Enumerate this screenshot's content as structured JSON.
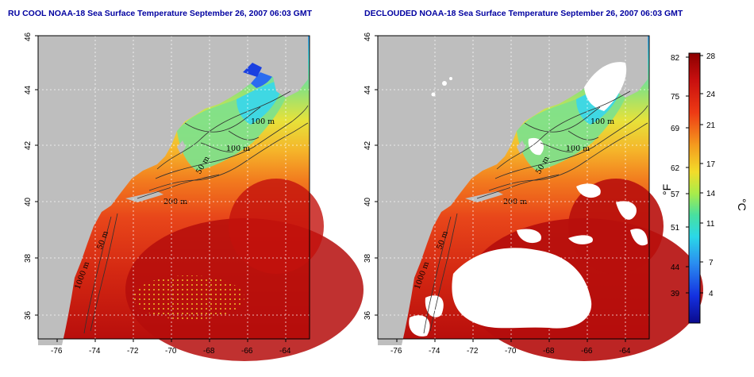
{
  "panels": [
    {
      "title": "RU COOL NOAA-18 Sea Surface Temperature September 26, 2007 06:03 GMT",
      "contour_labels": [
        "100 m",
        "100 m",
        "50 m",
        "200 m",
        "50 m",
        "1000 m"
      ]
    },
    {
      "title": "DECLOUDED NOAA-18 Sea Surface Temperature September 26, 2007 06:03 GMT",
      "contour_labels": [
        "100 m",
        "100 m",
        "50 m",
        "200 m",
        "50 m",
        "1000 m"
      ]
    }
  ],
  "axes": {
    "lon_ticks": [
      "-76",
      "-74",
      "-72",
      "-70",
      "-68",
      "-66",
      "-64"
    ],
    "lat_ticks": [
      "36",
      "38",
      "40",
      "42",
      "44",
      "46"
    ]
  },
  "colorbar": {
    "fahrenheit_label": "°F",
    "celsius_label": "°C",
    "fahrenheit_ticks": [
      "82",
      "75",
      "69",
      "62",
      "57",
      "51",
      "44",
      "39"
    ],
    "celsius_ticks": [
      "28",
      "24",
      "21",
      "17",
      "14",
      "11",
      "7",
      "4"
    ]
  },
  "colors": {
    "land": "#bebebe",
    "cloud": "#ffffff",
    "warm": "#c8140f",
    "cold": "#0a14a0"
  }
}
